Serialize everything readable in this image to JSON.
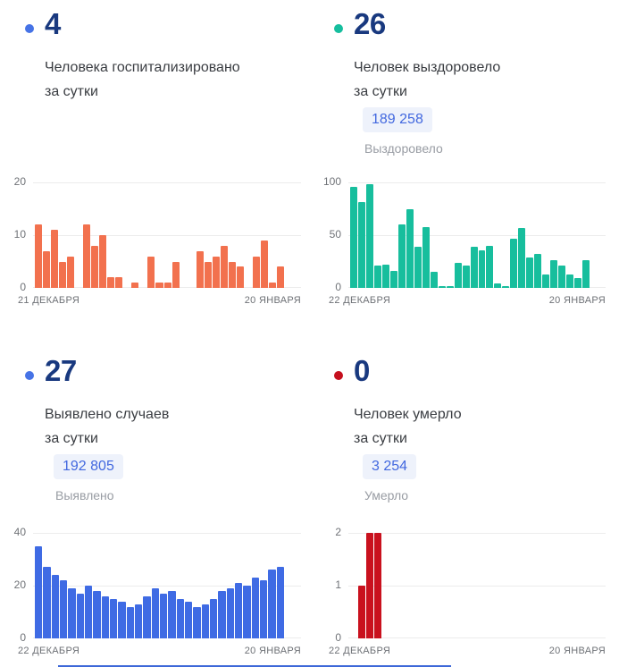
{
  "cards": [
    {
      "value": "4",
      "desc_line1": "Человека госпитализировано",
      "desc_line2": "за сутки",
      "dot_color": "#4673E6"
    },
    {
      "value": "26",
      "desc_line1": "Человек выздоровело",
      "desc_line2": "за сутки",
      "badge": "189 258",
      "caption": "Выздоровело",
      "dot_color": "#16BE9E"
    },
    {
      "value": "27",
      "desc_line1": "Выявлено случаев",
      "desc_line2": "за сутки",
      "badge": "192 805",
      "caption": "Выявлено",
      "dot_color": "#4673E6"
    },
    {
      "value": "0",
      "desc_line1": "Человек умерло",
      "desc_line2": "за сутки",
      "badge": "3 254",
      "caption": "Умерло",
      "dot_color": "#C5101E"
    }
  ],
  "chart_data": [
    {
      "type": "bar",
      "title": "Человека госпитализировано за сутки",
      "color": "#F2714E",
      "x_start": "21 ДЕКАБРЯ",
      "x_end": "20 ЯНВАРЯ",
      "ymax": 20,
      "y_ticks": [
        20,
        10,
        0
      ],
      "grid": true,
      "values": [
        12,
        7,
        11,
        5,
        6,
        0,
        12,
        8,
        10,
        2,
        2,
        0,
        1,
        0,
        6,
        1,
        1,
        5,
        0,
        0,
        7,
        5,
        6,
        8,
        5,
        4,
        0,
        6,
        9,
        1,
        4
      ]
    },
    {
      "type": "bar",
      "title": "Человек выздоровело за сутки",
      "color": "#17BE9D",
      "x_start": "22 ДЕКАБРЯ",
      "x_end": "20 ЯНВАРЯ",
      "ymax": 100,
      "y_ticks": [
        100,
        50,
        0
      ],
      "grid": true,
      "values": [
        96,
        81,
        98,
        21,
        22,
        16,
        60,
        75,
        39,
        58,
        15,
        1,
        1,
        24,
        21,
        39,
        36,
        40,
        4,
        2,
        47,
        57,
        29,
        32,
        13,
        26,
        21,
        13,
        9,
        26
      ]
    },
    {
      "type": "bar",
      "title": "Выявлено случаев за сутки",
      "color": "#3F6BE4",
      "x_start": "22 ДЕКАБРЯ",
      "x_end": "20 ЯНВАРЯ",
      "ymax": 40,
      "y_ticks": [
        40,
        20,
        0
      ],
      "grid": true,
      "values": [
        35,
        27,
        24,
        22,
        19,
        17,
        20,
        18,
        16,
        15,
        14,
        12,
        13,
        16,
        19,
        17,
        18,
        15,
        14,
        12,
        13,
        15,
        18,
        19,
        21,
        20,
        23,
        22,
        26,
        27
      ]
    },
    {
      "type": "bar",
      "title": "Человек умерло за сутки",
      "color": "#C9111E",
      "x_start": "22 ДЕКАБРЯ",
      "x_end": "20 ЯНВАРЯ",
      "ymax": 2,
      "y_ticks": [
        2,
        1,
        0
      ],
      "grid": true,
      "values": [
        0,
        1,
        2,
        2,
        0,
        0,
        0,
        0,
        0,
        0,
        0,
        0,
        0,
        0,
        0,
        0,
        0,
        0,
        0,
        0,
        0,
        0,
        0,
        0,
        0,
        0,
        0,
        0,
        0,
        0
      ]
    }
  ]
}
